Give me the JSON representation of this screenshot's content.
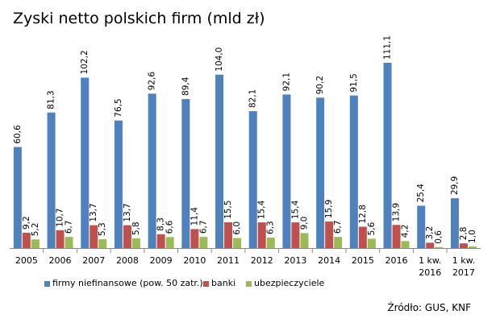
{
  "chart_data": {
    "type": "bar",
    "title": "Zyski netto polskich firm (mld zł)",
    "categories": [
      "2005",
      "2006",
      "2007",
      "2008",
      "2009",
      "2010",
      "2011",
      "2012",
      "2013",
      "2014",
      "2015",
      "2016",
      "1 kw. 2016",
      "1 kw. 2017"
    ],
    "series": [
      {
        "name": "firmy niefinansowe (pow. 50 zatr.)",
        "color": "#4f81bd",
        "values": [
          60.6,
          81.3,
          102.2,
          76.5,
          92.6,
          89.4,
          104.0,
          82.1,
          92.1,
          90.2,
          91.5,
          111.1,
          25.4,
          29.9
        ],
        "value_labels": [
          "60,6",
          "81,3",
          "102,2",
          "76,5",
          "92,6",
          "89,4",
          "104,0",
          "82,1",
          "92,1",
          "90,2",
          "91,5",
          "111,1",
          "25,4",
          "29,9"
        ]
      },
      {
        "name": "banki",
        "color": "#c0504d",
        "values": [
          9.2,
          10.7,
          13.7,
          13.7,
          8.3,
          11.4,
          15.5,
          15.4,
          15.4,
          15.9,
          12.8,
          13.9,
          3.2,
          2.8
        ],
        "value_labels": [
          "9,2",
          "10,7",
          "13,7",
          "13,7",
          "8,3",
          "11,4",
          "15,5",
          "15,4",
          "15,4",
          "15,9",
          "12,8",
          "13,9",
          "3,2",
          "2,8"
        ]
      },
      {
        "name": "ubezpieczyciele",
        "color": "#9bbb59",
        "values": [
          5.2,
          6.7,
          5.3,
          5.8,
          6.6,
          6.7,
          6.0,
          6.3,
          9.0,
          6.7,
          5.6,
          4.2,
          0.6,
          1.0
        ],
        "value_labels": [
          "5,2",
          "6,7",
          "5,3",
          "5,8",
          "6,6",
          "6,7",
          "6,0",
          "6,3",
          "9,0",
          "6,7",
          "5,6",
          "4,2",
          "0,6",
          "1,0"
        ]
      }
    ],
    "source": "Źródło: GUS, KNF"
  }
}
